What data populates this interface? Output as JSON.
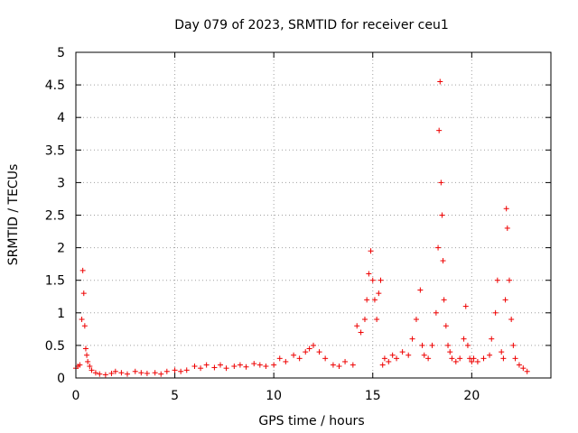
{
  "chart_data": {
    "type": "scatter",
    "title": "Day 079 of 2023, SRMTID for receiver ceu1",
    "xlabel": "GPS time / hours",
    "ylabel": "SRMTID / TECUs",
    "xlim": [
      0,
      24
    ],
    "ylim": [
      0,
      5
    ],
    "xticks": [
      0,
      5,
      10,
      15,
      20
    ],
    "xtick_labels": [
      "0",
      "5",
      "10",
      "15",
      "20"
    ],
    "yticks": [
      0,
      0.5,
      1,
      1.5,
      2,
      2.5,
      3,
      3.5,
      4,
      4.5,
      5
    ],
    "ytick_labels": [
      "0",
      "0.5",
      "1",
      "1.5",
      "2",
      "2.5",
      "3",
      "3.5",
      "4",
      "4.5",
      "5"
    ],
    "grid": true,
    "marker": "+",
    "colors": {
      "points": "#ee0000"
    },
    "series": [
      {
        "name": "ceu1",
        "x": [
          0.0,
          0.1,
          0.2,
          0.3,
          0.35,
          0.4,
          0.45,
          0.5,
          0.55,
          0.6,
          0.7,
          0.8,
          1.0,
          1.2,
          1.5,
          1.8,
          2.0,
          2.3,
          2.6,
          3.0,
          3.3,
          3.6,
          4.0,
          4.3,
          4.6,
          5.0,
          5.3,
          5.6,
          6.0,
          6.3,
          6.6,
          7.0,
          7.3,
          7.6,
          8.0,
          8.3,
          8.6,
          9.0,
          9.3,
          9.6,
          10.0,
          10.3,
          10.6,
          11.0,
          11.3,
          11.6,
          11.8,
          12.0,
          12.3,
          12.6,
          13.0,
          13.3,
          13.6,
          14.0,
          14.2,
          14.4,
          14.6,
          14.7,
          14.8,
          14.9,
          15.0,
          15.1,
          15.2,
          15.3,
          15.4,
          15.5,
          15.6,
          15.8,
          16.0,
          16.2,
          16.5,
          16.8,
          17.0,
          17.2,
          17.4,
          17.5,
          17.6,
          17.8,
          18.0,
          18.2,
          18.3,
          18.35,
          18.4,
          18.45,
          18.5,
          18.55,
          18.6,
          18.7,
          18.8,
          18.9,
          19.0,
          19.2,
          19.4,
          19.6,
          19.7,
          19.8,
          19.9,
          20.0,
          20.1,
          20.3,
          20.6,
          20.9,
          21.0,
          21.2,
          21.3,
          21.5,
          21.6,
          21.7,
          21.75,
          21.8,
          21.9,
          22.0,
          22.1,
          22.2,
          22.4,
          22.6,
          22.8
        ],
        "y": [
          0.15,
          0.18,
          0.2,
          0.9,
          1.65,
          1.3,
          0.8,
          0.45,
          0.35,
          0.25,
          0.18,
          0.12,
          0.08,
          0.06,
          0.05,
          0.07,
          0.1,
          0.08,
          0.06,
          0.1,
          0.08,
          0.07,
          0.08,
          0.06,
          0.1,
          0.12,
          0.1,
          0.12,
          0.18,
          0.15,
          0.2,
          0.16,
          0.2,
          0.15,
          0.18,
          0.2,
          0.17,
          0.22,
          0.2,
          0.18,
          0.2,
          0.3,
          0.25,
          0.35,
          0.3,
          0.4,
          0.45,
          0.5,
          0.4,
          0.3,
          0.2,
          0.18,
          0.25,
          0.2,
          0.8,
          0.7,
          0.9,
          1.2,
          1.6,
          1.95,
          1.5,
          1.2,
          0.9,
          1.3,
          1.5,
          0.2,
          0.3,
          0.25,
          0.35,
          0.3,
          0.4,
          0.35,
          0.6,
          0.9,
          1.35,
          0.5,
          0.35,
          0.3,
          0.5,
          1.0,
          2.0,
          3.8,
          4.55,
          3.0,
          2.5,
          1.8,
          1.2,
          0.8,
          0.5,
          0.4,
          0.3,
          0.25,
          0.3,
          0.6,
          1.1,
          0.5,
          0.3,
          0.25,
          0.3,
          0.25,
          0.3,
          0.35,
          0.6,
          1.0,
          1.5,
          0.4,
          0.3,
          1.2,
          2.6,
          2.3,
          1.5,
          0.9,
          0.5,
          0.3,
          0.2,
          0.15,
          0.1
        ]
      }
    ]
  }
}
